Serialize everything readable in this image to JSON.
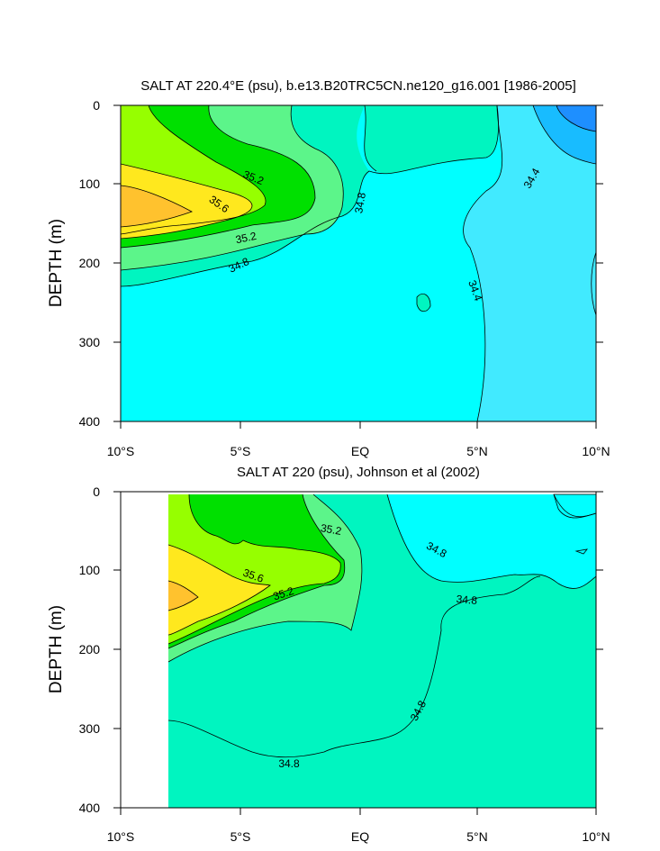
{
  "chart_data": [
    {
      "type": "contour",
      "title": "SALT AT 220.4°E (psu), b.e13.B20TRC5CN.ne120_g16.001 [1986-2005]",
      "ylabel": "DEPTH (m)",
      "xlabel": "",
      "x_tick_labels": [
        "10°S",
        "5°S",
        "EQ",
        "5°N",
        "10°N"
      ],
      "x_ticks_lat": [
        -10,
        -5,
        0,
        5,
        10
      ],
      "y_tick_labels": [
        "0",
        "100",
        "200",
        "300",
        "400"
      ],
      "y_ticks_depth_m": [
        0,
        100,
        200,
        300,
        400
      ],
      "xlim_lat": [
        -10,
        10
      ],
      "ylim_depth_m": [
        400,
        0
      ],
      "data_start_lat": -10,
      "contour_levels": [
        34.0,
        34.2,
        34.4,
        34.6,
        34.8,
        35.0,
        35.2,
        35.4,
        35.6,
        35.8
      ],
      "contour_labels": [
        "35.2",
        "35.6",
        "35.2",
        "34.8",
        "34.8",
        "34.4",
        "34.4"
      ],
      "fill_colors": {
        "lt34.2": "#1e8fff",
        "34.2": "#18bcff",
        "34.4": "#41eaff",
        "34.6": "#00ffff",
        "34.8": "#00f5c0",
        "35.0": "#5cf58a",
        "35.2": "#00e000",
        "35.4": "#96ff00",
        "35.6": "#ffe81e",
        "35.8": "#ffc22e"
      }
    },
    {
      "type": "contour",
      "title": "SALT AT 220 (psu), Johnson et al (2002)",
      "ylabel": "DEPTH (m)",
      "xlabel": "",
      "x_tick_labels": [
        "10°S",
        "5°S",
        "EQ",
        "5°N",
        "10°N"
      ],
      "x_ticks_lat": [
        -10,
        -5,
        0,
        5,
        10
      ],
      "y_tick_labels": [
        "0",
        "100",
        "200",
        "300",
        "400"
      ],
      "y_ticks_depth_m": [
        0,
        100,
        200,
        300,
        400
      ],
      "xlim_lat": [
        -10,
        10
      ],
      "ylim_depth_m": [
        400,
        0
      ],
      "data_start_lat": -8,
      "contour_levels": [
        34.4,
        34.6,
        34.8,
        35.0,
        35.2,
        35.4,
        35.6,
        35.8
      ],
      "contour_labels": [
        "35.2",
        "35.6",
        "35.2",
        "34.8",
        "34.8",
        "34.8",
        "34.8"
      ],
      "fill_colors": {
        "34.4": "#00ffff",
        "34.6": "#00f5c0",
        "34.8": "#00f5c0",
        "35.0": "#5cf58a",
        "35.2": "#00e000",
        "35.4": "#96ff00",
        "35.6": "#ffe81e",
        "35.8": "#ffc22e"
      }
    }
  ]
}
